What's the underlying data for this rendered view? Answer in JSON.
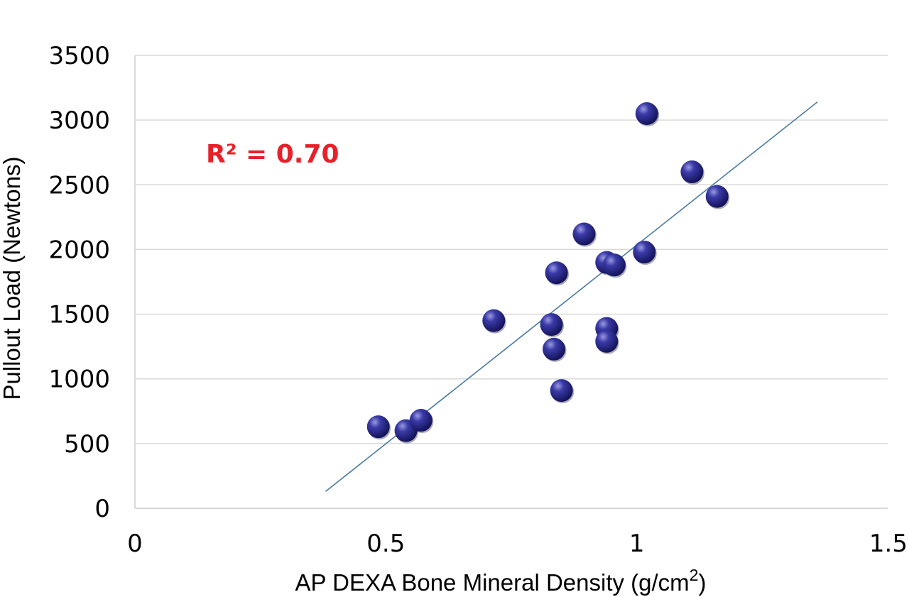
{
  "chart_data": {
    "type": "scatter",
    "title": "",
    "xlabel": "AP DEXA Bone Mineral Density (g/cm",
    "xlabel_superscript": "2",
    "xlabel_suffix": ")",
    "ylabel": "Pullout Load (Newtons)",
    "xlim": [
      0,
      1.5
    ],
    "ylim": [
      0,
      3500
    ],
    "x_ticks": [
      "0",
      "0.5",
      "1",
      "1.5"
    ],
    "y_ticks": [
      "0",
      "500",
      "1000",
      "1500",
      "2000",
      "2500",
      "3000",
      "3500"
    ],
    "grid": "horizontal",
    "legend": "none",
    "marker_color": "#2e2e8c",
    "trendline_color": "#4a7aa0",
    "annotation": {
      "text": "R² = 0.70",
      "color": "#e8202a"
    },
    "trendline": {
      "x": [
        0.38,
        1.36
      ],
      "y": [
        130,
        3140
      ]
    },
    "points": [
      {
        "x": 0.485,
        "y": 630
      },
      {
        "x": 0.54,
        "y": 600
      },
      {
        "x": 0.57,
        "y": 680
      },
      {
        "x": 0.715,
        "y": 1450
      },
      {
        "x": 0.83,
        "y": 1420
      },
      {
        "x": 0.835,
        "y": 1230
      },
      {
        "x": 0.84,
        "y": 1820
      },
      {
        "x": 0.85,
        "y": 910
      },
      {
        "x": 0.895,
        "y": 2120
      },
      {
        "x": 0.94,
        "y": 1900
      },
      {
        "x": 0.94,
        "y": 1390
      },
      {
        "x": 0.94,
        "y": 1290
      },
      {
        "x": 0.955,
        "y": 1880
      },
      {
        "x": 1.015,
        "y": 1980
      },
      {
        "x": 1.02,
        "y": 3050
      },
      {
        "x": 1.11,
        "y": 2600
      },
      {
        "x": 1.16,
        "y": 2410
      }
    ]
  }
}
